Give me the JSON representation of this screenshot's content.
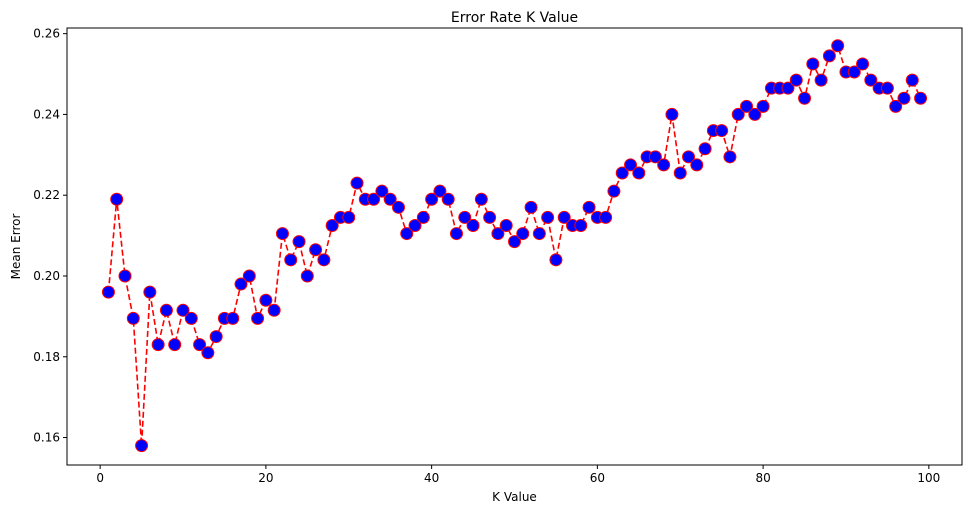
{
  "chart_data": {
    "type": "line",
    "title": "Error Rate K Value",
    "xlabel": "K Value",
    "ylabel": "Mean Error",
    "xlim": [
      -4,
      104
    ],
    "ylim": [
      0.1532,
      0.2614
    ],
    "xticks": [
      0,
      20,
      40,
      60,
      80,
      100
    ],
    "xtick_labels": [
      "0",
      "20",
      "40",
      "60",
      "80",
      "100"
    ],
    "yticks": [
      0.16,
      0.18,
      0.2,
      0.22,
      0.24,
      0.26
    ],
    "ytick_labels": [
      "0.16",
      "0.18",
      "0.20",
      "0.22",
      "0.24",
      "0.26"
    ],
    "grid": false,
    "legend": "none",
    "line_color": "#ff0000",
    "line_style": "dashed",
    "marker": "circle",
    "marker_face_color": "#0000ff",
    "marker_edge_color": "#ff0000",
    "series": [
      {
        "x": [
          1,
          2,
          3,
          4,
          5,
          6,
          7,
          8,
          9,
          10,
          11,
          12,
          13,
          14,
          15,
          16,
          17,
          18,
          19,
          20,
          21,
          22,
          23,
          24,
          25,
          26,
          27,
          28,
          29,
          30,
          31,
          32,
          33,
          34,
          35,
          36,
          37,
          38,
          39,
          40,
          41,
          42,
          43,
          44,
          45,
          46,
          47,
          48,
          49,
          50,
          51,
          52,
          53,
          54,
          55,
          56,
          57,
          58,
          59,
          60,
          61,
          62,
          63,
          64,
          65,
          66,
          67,
          68,
          69,
          70,
          71,
          72,
          73,
          74,
          75,
          76,
          77,
          78,
          79,
          80,
          81,
          82,
          83,
          84,
          85,
          86,
          87,
          88,
          89,
          90,
          91,
          92,
          93,
          94,
          95,
          96,
          97,
          98,
          99
        ],
        "values": [
          0.196,
          0.219,
          0.2,
          0.1895,
          0.158,
          0.196,
          0.183,
          0.1915,
          0.183,
          0.1915,
          0.1895,
          0.183,
          0.181,
          0.185,
          0.1895,
          0.1895,
          0.198,
          0.2,
          0.1895,
          0.194,
          0.1915,
          0.2105,
          0.204,
          0.2085,
          0.2,
          0.2065,
          0.204,
          0.2125,
          0.2145,
          0.2145,
          0.223,
          0.219,
          0.219,
          0.221,
          0.219,
          0.217,
          0.2105,
          0.2125,
          0.2145,
          0.219,
          0.221,
          0.219,
          0.2105,
          0.2145,
          0.2125,
          0.219,
          0.2145,
          0.2105,
          0.2125,
          0.2085,
          0.2105,
          0.217,
          0.2105,
          0.2145,
          0.204,
          0.2145,
          0.2125,
          0.2125,
          0.217,
          0.2145,
          0.2145,
          0.221,
          0.2255,
          0.2275,
          0.2255,
          0.2295,
          0.2295,
          0.2275,
          0.24,
          0.2255,
          0.2295,
          0.2275,
          0.2315,
          0.236,
          0.236,
          0.2295,
          0.24,
          0.242,
          0.24,
          0.242,
          0.2465,
          0.2465,
          0.2465,
          0.2485,
          0.244,
          0.2525,
          0.2485,
          0.2545,
          0.257,
          0.2505,
          0.2505,
          0.2525,
          0.2485,
          0.2465,
          0.2465,
          0.242,
          0.244,
          0.2485,
          0.244
        ]
      }
    ]
  }
}
